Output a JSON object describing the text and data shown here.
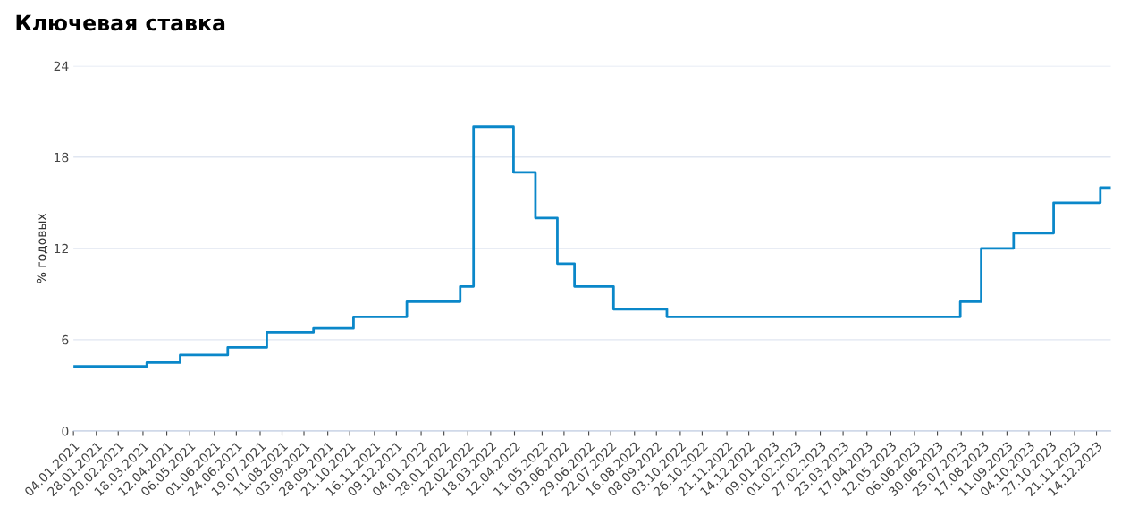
{
  "chart_data": {
    "type": "step",
    "title": "Ключевая ставка",
    "ylabel": "% годовых",
    "series": [
      {
        "color": "#0a87c9",
        "x": [
          "2021-01-04",
          "2021-03-22",
          "2021-04-26",
          "2021-06-15",
          "2021-07-26",
          "2021-09-13",
          "2021-10-25",
          "2021-12-20",
          "2022-02-14",
          "2022-02-28",
          "2022-04-11",
          "2022-05-04",
          "2022-05-27",
          "2022-06-14",
          "2022-07-25",
          "2022-09-19",
          "2023-07-24",
          "2023-08-15",
          "2023-09-18",
          "2023-10-30",
          "2023-12-18",
          "2023-12-29"
        ],
        "values": [
          4.25,
          4.5,
          5.0,
          5.5,
          6.5,
          6.75,
          7.5,
          8.5,
          9.5,
          20,
          17,
          14,
          11,
          9.5,
          8,
          7.5,
          8.5,
          12,
          13,
          15,
          16,
          16
        ]
      }
    ],
    "xlim": [
      "2021-01-04",
      "2023-12-29"
    ],
    "xticks": [
      {
        "value": "2021-01-04",
        "label": "04.01.2021"
      },
      {
        "value": "2021-01-28",
        "label": "28.01.2021"
      },
      {
        "value": "2021-02-20",
        "label": "20.02.2021"
      },
      {
        "value": "2021-03-18",
        "label": "18.03.2021"
      },
      {
        "value": "2021-04-12",
        "label": "12.04.2021"
      },
      {
        "value": "2021-05-06",
        "label": "06.05.2021"
      },
      {
        "value": "2021-06-01",
        "label": "01.06.2021"
      },
      {
        "value": "2021-06-24",
        "label": "24.06.2021"
      },
      {
        "value": "2021-07-19",
        "label": "19.07.2021"
      },
      {
        "value": "2021-08-11",
        "label": "11.08.2021"
      },
      {
        "value": "2021-09-03",
        "label": "03.09.2021"
      },
      {
        "value": "2021-09-28",
        "label": "28.09.2021"
      },
      {
        "value": "2021-10-21",
        "label": "21.10.2021"
      },
      {
        "value": "2021-11-16",
        "label": "16.11.2021"
      },
      {
        "value": "2021-12-09",
        "label": "09.12.2021"
      },
      {
        "value": "2022-01-04",
        "label": "04.01.2022"
      },
      {
        "value": "2022-01-28",
        "label": "28.01.2022"
      },
      {
        "value": "2022-02-22",
        "label": "22.02.2022"
      },
      {
        "value": "2022-03-18",
        "label": "18.03.2022"
      },
      {
        "value": "2022-04-12",
        "label": "12.04.2022"
      },
      {
        "value": "2022-05-11",
        "label": "11.05.2022"
      },
      {
        "value": "2022-06-03",
        "label": "03.06.2022"
      },
      {
        "value": "2022-06-29",
        "label": "29.06.2022"
      },
      {
        "value": "2022-07-22",
        "label": "22.07.2022"
      },
      {
        "value": "2022-08-16",
        "label": "16.08.2022"
      },
      {
        "value": "2022-09-08",
        "label": "08.09.2022"
      },
      {
        "value": "2022-10-03",
        "label": "03.10.2022"
      },
      {
        "value": "2022-10-26",
        "label": "26.10.2022"
      },
      {
        "value": "2022-11-21",
        "label": "21.11.2022"
      },
      {
        "value": "2022-12-14",
        "label": "14.12.2022"
      },
      {
        "value": "2023-01-09",
        "label": "09.01.2023"
      },
      {
        "value": "2023-02-01",
        "label": "01.02.2023"
      },
      {
        "value": "2023-02-27",
        "label": "27.02.2023"
      },
      {
        "value": "2023-03-23",
        "label": "23.03.2023"
      },
      {
        "value": "2023-04-17",
        "label": "17.04.2023"
      },
      {
        "value": "2023-05-12",
        "label": "12.05.2023"
      },
      {
        "value": "2023-06-06",
        "label": "06.06.2023"
      },
      {
        "value": "2023-06-30",
        "label": "30.06.2023"
      },
      {
        "value": "2023-07-25",
        "label": "25.07.2023"
      },
      {
        "value": "2023-08-17",
        "label": "17.08.2023"
      },
      {
        "value": "2023-09-11",
        "label": "11.09.2023"
      },
      {
        "value": "2023-10-04",
        "label": "04.10.2023"
      },
      {
        "value": "2023-10-27",
        "label": "27.10.2023"
      },
      {
        "value": "2023-11-21",
        "label": "21.11.2023"
      },
      {
        "value": "2023-12-14",
        "label": "14.12.2023"
      }
    ],
    "ylim": [
      0,
      24
    ],
    "yticks": [
      0,
      6,
      12,
      18,
      24
    ],
    "grid": "y",
    "legend": false,
    "marker": "none",
    "line_style": "solid"
  }
}
